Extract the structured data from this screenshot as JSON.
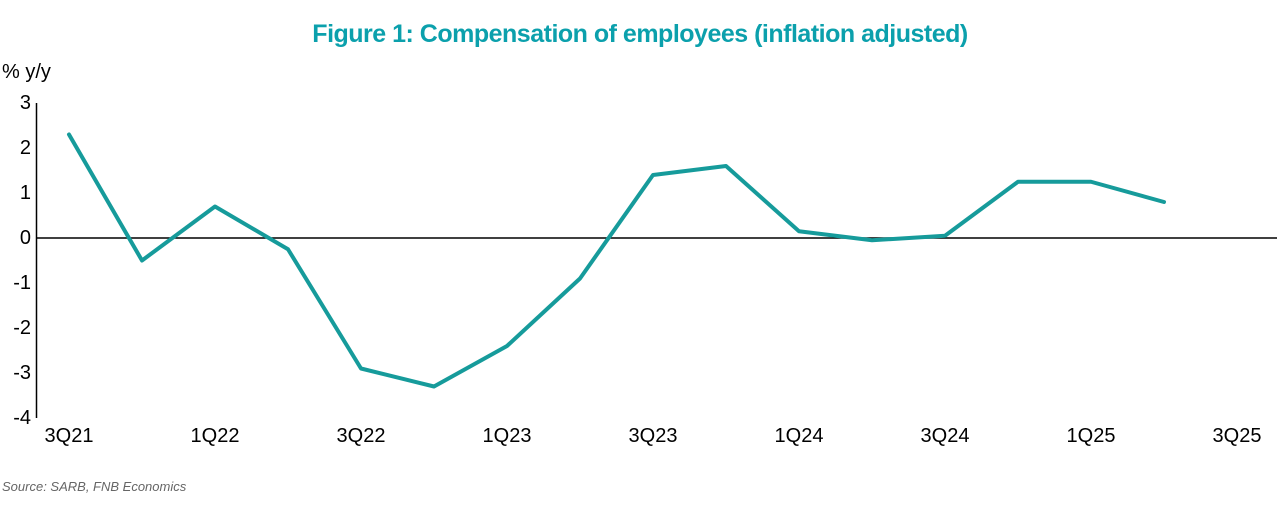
{
  "title": "Figure 1: Compensation of employees (inflation adjusted)",
  "y_axis_label": "% y/y",
  "source": "Source: SARB, FNB Economics",
  "colors": {
    "title_accent": "#0BA0AC",
    "line": "#169B9B",
    "axis": "#000000",
    "source_text": "#666666"
  },
  "chart_data": {
    "type": "line",
    "title": "Figure 1: Compensation of employees (inflation adjusted)",
    "xlabel": "",
    "ylabel": "% y/y",
    "x": [
      "3Q21",
      "4Q21",
      "1Q22",
      "2Q22",
      "3Q22",
      "4Q22",
      "1Q23",
      "2Q23",
      "3Q23",
      "4Q23",
      "1Q24",
      "2Q24",
      "3Q24",
      "4Q24",
      "1Q25",
      "2Q25"
    ],
    "values": [
      2.3,
      -0.5,
      0.7,
      -0.25,
      -2.9,
      -3.3,
      -2.4,
      -0.9,
      1.4,
      1.6,
      0.15,
      -0.05,
      0.05,
      1.25,
      1.25,
      0.8
    ],
    "x_tick_labels": [
      "3Q21",
      "1Q22",
      "3Q22",
      "1Q23",
      "3Q23",
      "1Q24",
      "3Q24",
      "1Q25",
      "3Q25"
    ],
    "y_ticks": [
      3,
      2,
      1,
      0,
      -1,
      -2,
      -3,
      -4
    ],
    "ylim": [
      -4,
      3
    ],
    "grid": false,
    "legend": "none",
    "zero_line": true
  }
}
